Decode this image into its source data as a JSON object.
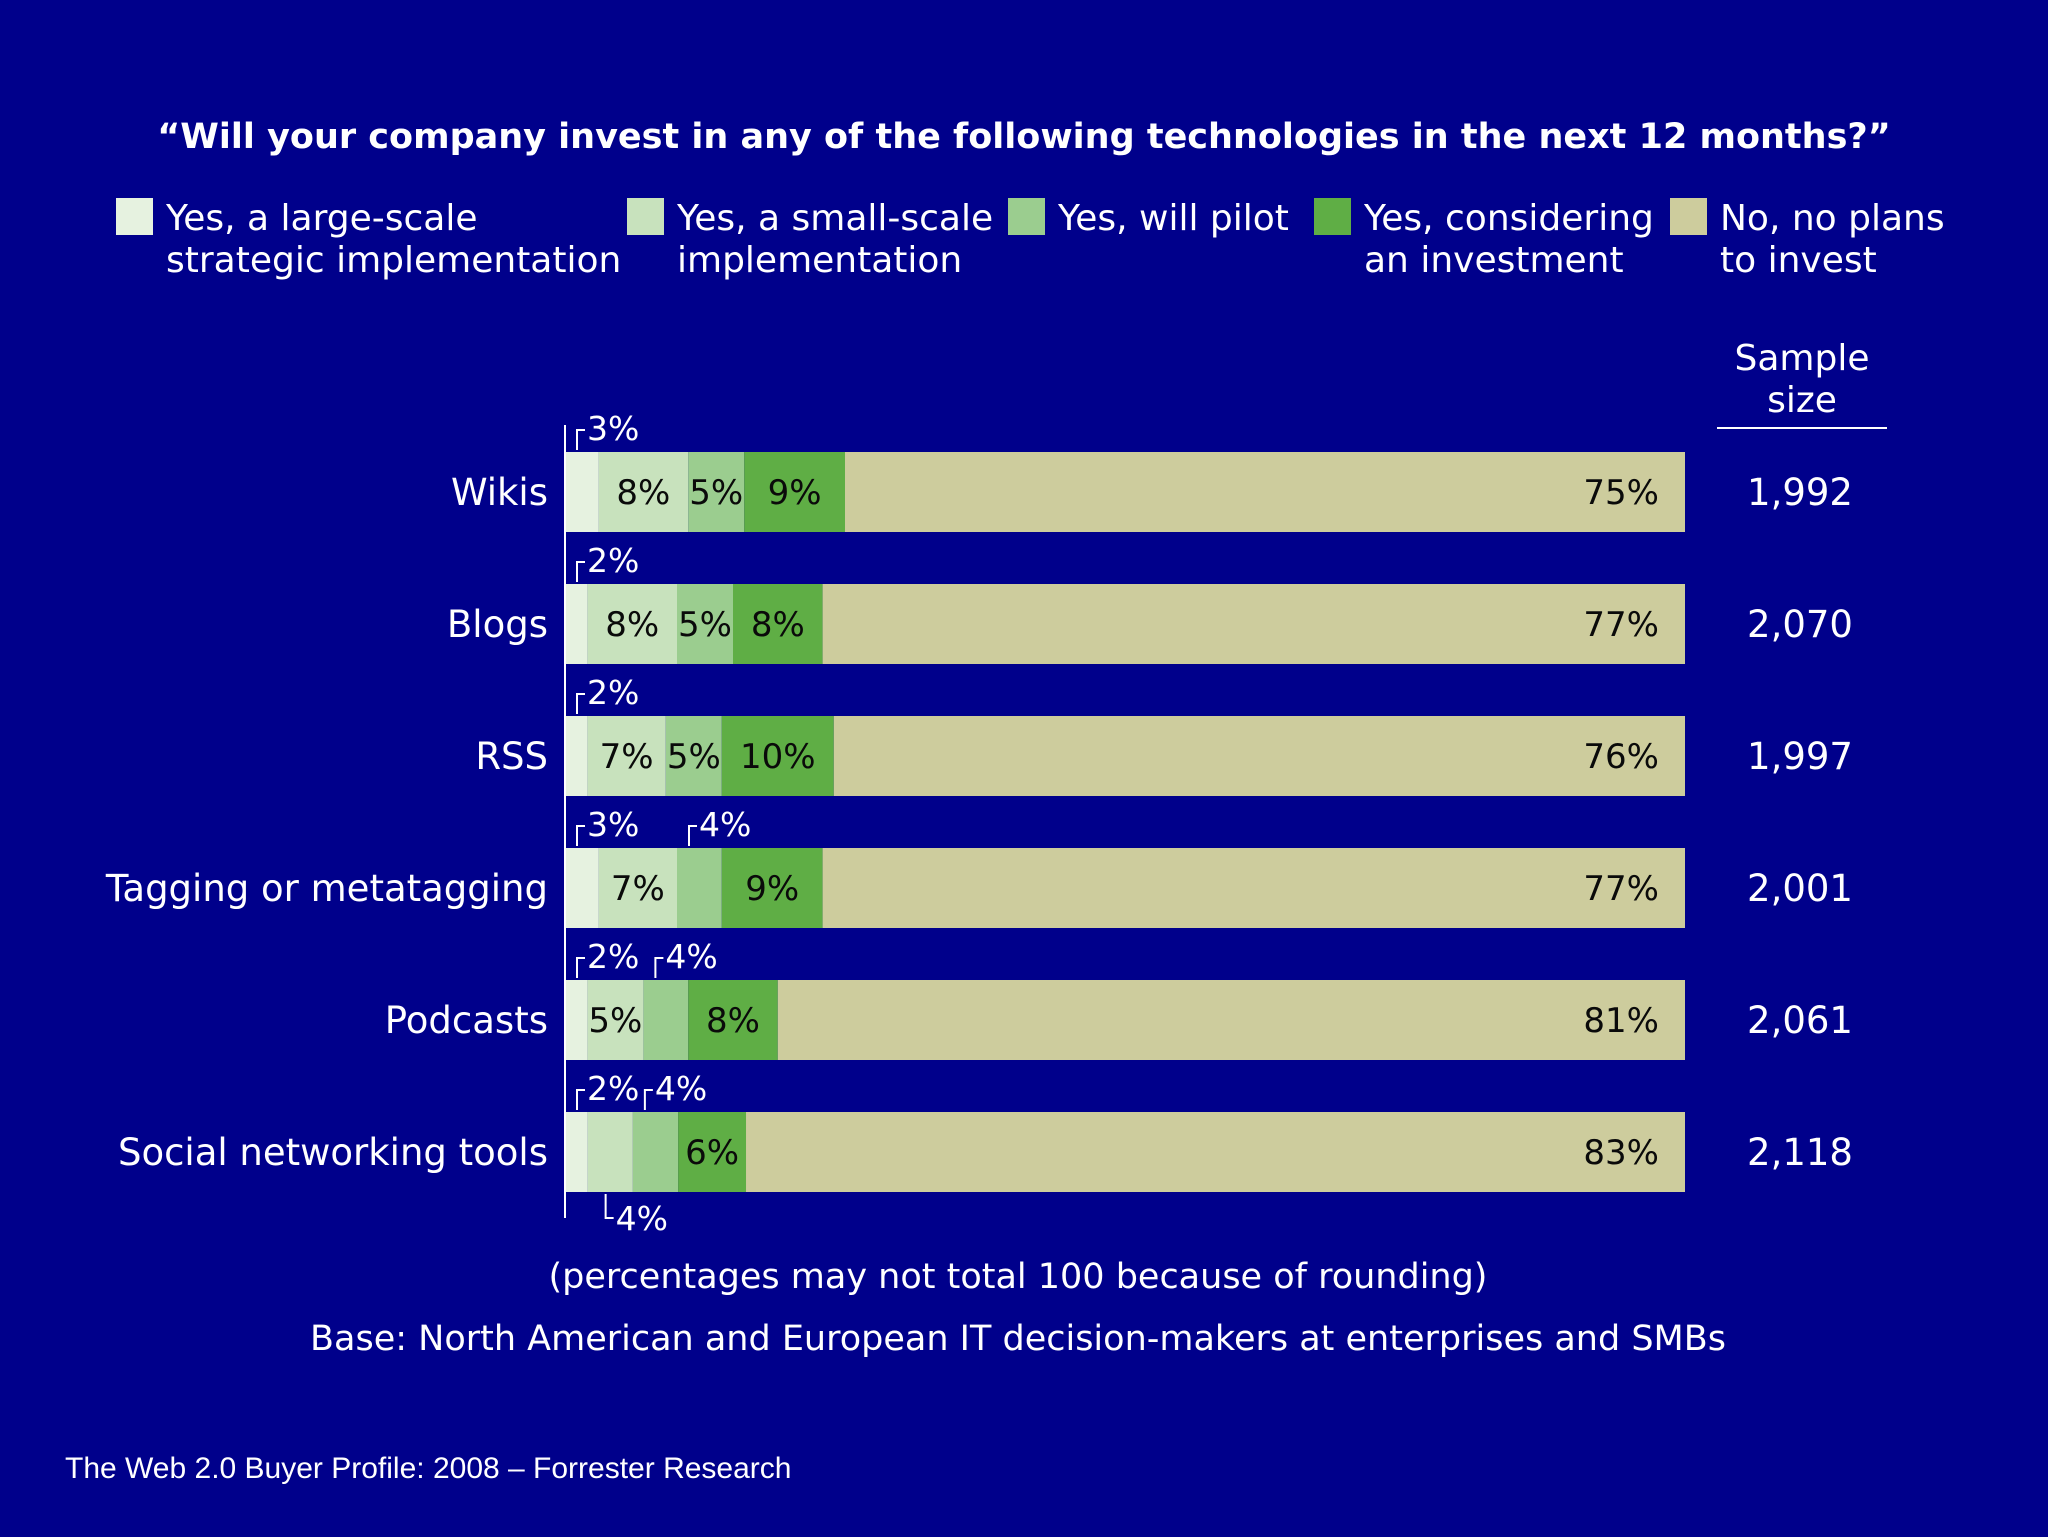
{
  "chart_data": {
    "type": "bar",
    "orientation": "horizontal",
    "stacked": true,
    "title": "“Will your company invest in any of the following technologies in the next 12 months?”",
    "categories": [
      "Wikis",
      "Blogs",
      "RSS",
      "Tagging or metatagging",
      "Podcasts",
      "Social networking tools"
    ],
    "series": [
      {
        "name": [
          "Yes, a large-scale",
          "strategic implementation"
        ],
        "color": "#e6f2e0",
        "values": [
          3,
          2,
          2,
          3,
          2,
          2
        ]
      },
      {
        "name": [
          "Yes, a small-scale",
          "implementation"
        ],
        "color": "#c8e2bd",
        "values": [
          8,
          8,
          7,
          7,
          5,
          4
        ]
      },
      {
        "name": [
          "Yes, will pilot"
        ],
        "color": "#9bcd8f",
        "values": [
          5,
          5,
          5,
          4,
          4,
          4
        ]
      },
      {
        "name": [
          "Yes, considering",
          "an investment"
        ],
        "color": "#5fae45",
        "values": [
          9,
          8,
          10,
          9,
          8,
          6
        ]
      },
      {
        "name": [
          "No, no plans",
          "to invest"
        ],
        "color": "#cdcc9d",
        "values": [
          75,
          77,
          76,
          77,
          81,
          83
        ]
      }
    ],
    "callout_labels": [
      {
        "category": 0,
        "series": 0,
        "position": "above"
      },
      {
        "category": 1,
        "series": 0,
        "position": "above"
      },
      {
        "category": 2,
        "series": 0,
        "position": "above"
      },
      {
        "category": 3,
        "series": 0,
        "position": "above"
      },
      {
        "category": 3,
        "series": 2,
        "position": "above"
      },
      {
        "category": 4,
        "series": 0,
        "position": "above"
      },
      {
        "category": 4,
        "series": 2,
        "position": "above"
      },
      {
        "category": 5,
        "series": 0,
        "position": "above"
      },
      {
        "category": 5,
        "series": 2,
        "position": "above"
      },
      {
        "category": 5,
        "series": 1,
        "position": "below"
      }
    ],
    "unit_suffix": "%",
    "sample_size_header": [
      "Sample",
      "size"
    ],
    "sample_sizes": [
      "1,992",
      "2,070",
      "1,997",
      "2,001",
      "2,061",
      "2,118"
    ],
    "xlim": [
      0,
      100
    ],
    "legend_position": "top",
    "grid": false
  },
  "notes": {
    "rounding": "(percentages may not total 100 because of rounding)",
    "base": "Base: North American and European IT decision-makers at enterprises and SMBs"
  },
  "source": "The Web 2.0 Buyer Profile: 2008 – Forrester Research"
}
